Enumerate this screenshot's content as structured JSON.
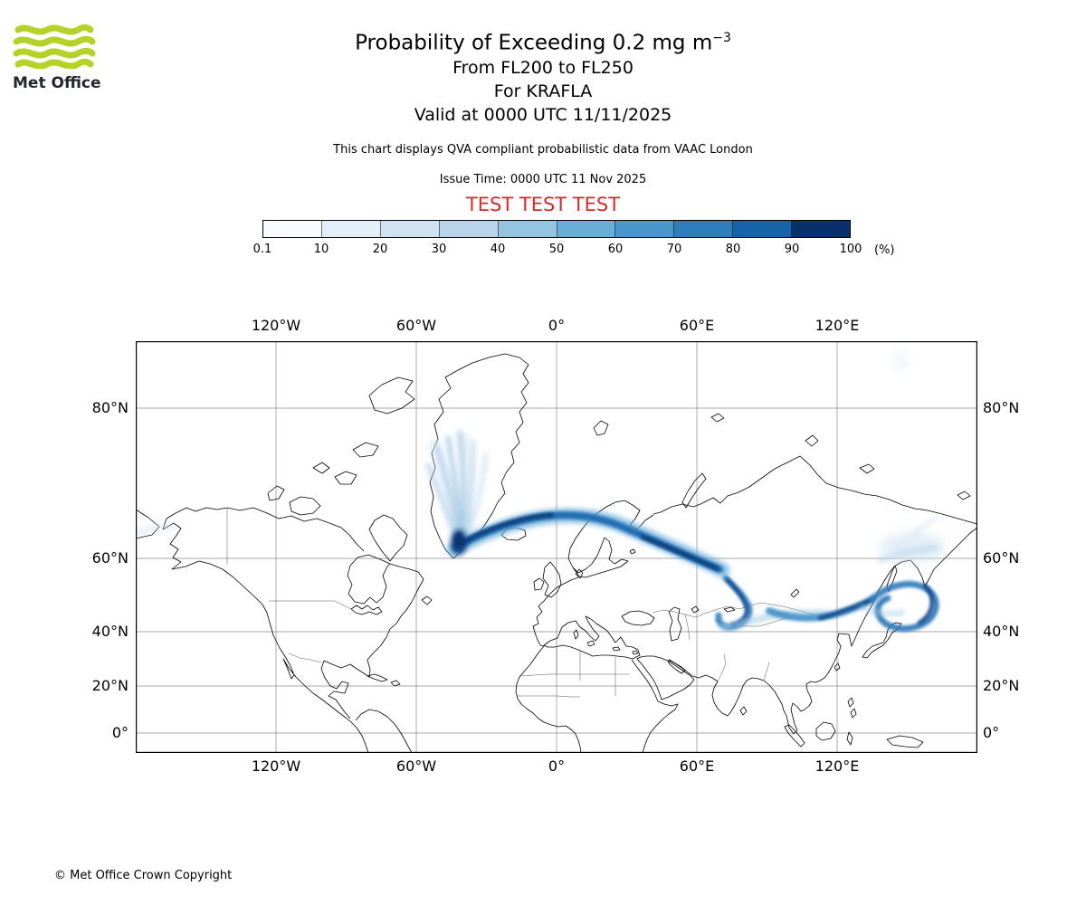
{
  "header": {
    "logo_text": "Met Office",
    "title": "Probability of Exceeding 0.2 mg m",
    "title_exponent": "−3",
    "subtitle_fl": "From FL200 to FL250",
    "subtitle_volcano": "For KRAFLA",
    "subtitle_valid": "Valid at 0000 UTC 11/11/2025",
    "description": "This chart displays QVA compliant probabilistic data from VAAC London",
    "issue_time": "Issue Time: 0000 UTC 11 Nov 2025",
    "test_banner": "TEST TEST TEST"
  },
  "colorbar": {
    "ticks": [
      "0.1",
      "10",
      "20",
      "30",
      "40",
      "50",
      "60",
      "70",
      "80",
      "90",
      "100"
    ],
    "unit": "(%)",
    "colors": [
      "#f7fbff",
      "#e2eef8",
      "#d0e1f2",
      "#b7d4ea",
      "#94c4df",
      "#6aaed6",
      "#4a98c9",
      "#2e7ebc",
      "#1864aa",
      "#08306b"
    ]
  },
  "map": {
    "lon_labels": [
      "120°W",
      "60°W",
      "0°",
      "60°E",
      "120°E"
    ],
    "lat_labels_left": [
      "80°N",
      "60°N",
      "40°N",
      "20°N",
      "0°"
    ],
    "lat_labels_right": [
      "80°N",
      "60°N",
      "40°N",
      "20°N",
      "0°"
    ]
  },
  "footer": {
    "copyright": "© Met Office Crown Copyright"
  },
  "colors": {
    "test_red": "#d42b2b",
    "logo_green": "#b4d228",
    "plume_light": "#c6dbef",
    "plume_dark": "#08306b",
    "map_grid": "#8a8a8a"
  },
  "chart_data": {
    "type": "heatmap",
    "title": "Probability of Exceeding 0.2 mg m⁻³ from FL200 to FL250 for KRAFLA, valid 0000 UTC 11/11/2025",
    "units": "%",
    "levels": [
      0.1,
      10,
      20,
      30,
      40,
      50,
      60,
      70,
      80,
      90,
      100
    ],
    "extent": {
      "lon": [
        -180,
        180
      ],
      "lat": [
        -10,
        84
      ]
    },
    "legend_position": "top",
    "grid": true,
    "plume_summary": [
      {
        "region": "SE Greenland / Iceland fan",
        "lat": "60-78N",
        "lon": "45W-15W",
        "probability": "10-40 diffuse streaks, dense 80-100 core near 62N"
      },
      {
        "region": "North Atlantic to Scandinavia",
        "lat": "58-66N",
        "lon": "15W-25E",
        "probability": "70-100 dense band"
      },
      {
        "region": "Western Russia",
        "lat": "52-60N",
        "lon": "25E-50E",
        "probability": "70-100 band, abrupt east end"
      },
      {
        "region": "Kazakhstan / Central Asia",
        "lat": "42-52N",
        "lon": "55E-80E",
        "probability": "40-90 curled filament"
      },
      {
        "region": "Mongolia / NE China / Korea / Japan",
        "lat": "38-50N",
        "lon": "85E-140E",
        "probability": "30-90 looped band"
      },
      {
        "region": "Sea of Okhotsk fringe",
        "lat": "55-62N",
        "lon": "140E-170E",
        "probability": "10-30 faint patch"
      }
    ]
  }
}
